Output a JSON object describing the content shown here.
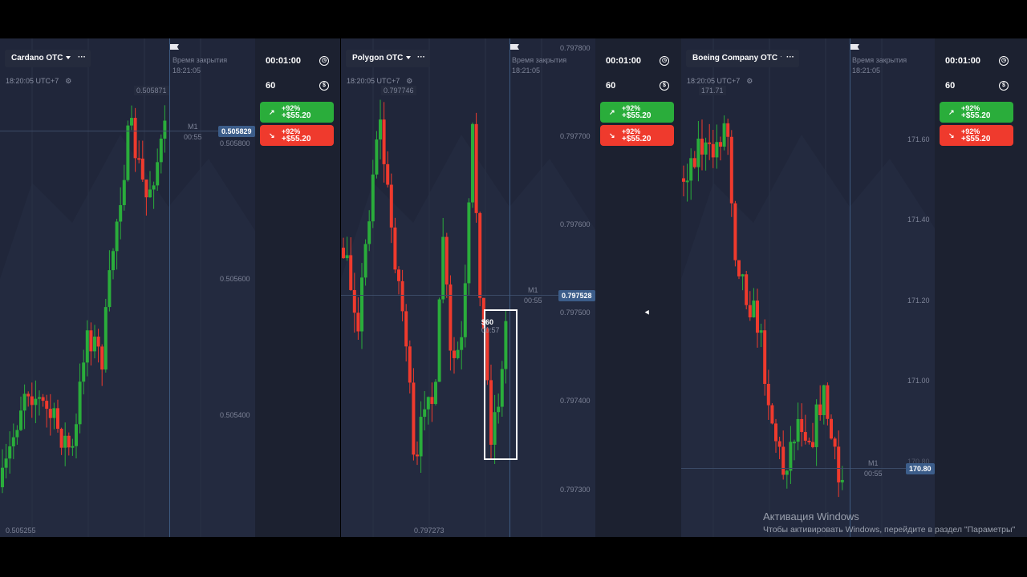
{
  "closing_time_label": "Время закрытия",
  "closing_time": "18:21:05",
  "clock": "18:20:05 UTC+7",
  "timeframe": "M1",
  "countdown": "00:55",
  "more_label": "···",
  "panels": [
    {
      "asset": "Cardano OTC",
      "duration": "00:01:00",
      "amount": "60",
      "up": {
        "pct": "+92%",
        "profit": "+$55.20"
      },
      "down": {
        "pct": "+92%",
        "profit": "+$55.20"
      },
      "high": "0.505871",
      "low": "0.505255",
      "current": "0.505829",
      "axis": [
        "0.505800",
        "0.505600",
        "0.505400"
      ]
    },
    {
      "asset": "Polygon OTC",
      "duration": "00:01:00",
      "amount": "60",
      "up": {
        "pct": "+92%",
        "profit": "+$55.20"
      },
      "down": {
        "pct": "+92%",
        "profit": "+$55.20"
      },
      "high": "0.797746",
      "low": "0.797273",
      "current": "0.797528",
      "axis": [
        "0.797800",
        "0.797700",
        "0.797600",
        "0.797500",
        "0.797400",
        "0.797300"
      ],
      "trade": {
        "amount": "$60",
        "time": "00:57"
      }
    },
    {
      "asset": "Boeing Company OTC",
      "duration": "00:01:00",
      "amount": "60",
      "up": {
        "pct": "+92%",
        "profit": "+$55.20"
      },
      "down": {
        "pct": "+92%",
        "profit": "+$55.20"
      },
      "high": "171.71",
      "current": "170.80",
      "axis": [
        "171.60",
        "171.40",
        "171.20",
        "171.00",
        "170.80"
      ]
    }
  ],
  "colors": {
    "up": "#2aad3b",
    "down": "#ef3a2d",
    "background": "#20263a",
    "price_tag": "#3c5d8a"
  },
  "icons": {
    "duration": "clock-icon",
    "amount": "dollar-icon",
    "up": "arrow-up-right-icon",
    "down": "arrow-down-right-icon"
  },
  "windows_watermark": {
    "title": "Активация Windows",
    "subtitle": "Чтобы активировать Windows, перейдите в раздел \"Параметры\""
  }
}
